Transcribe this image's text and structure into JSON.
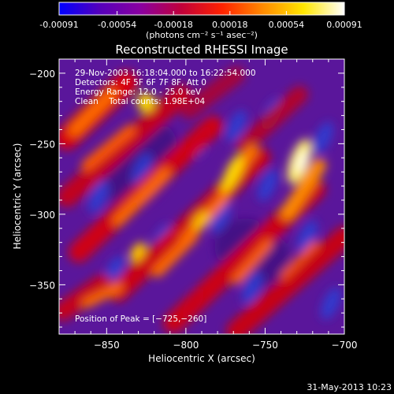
{
  "colorbar": {
    "tick_labels": [
      "-0.00091",
      "-0.00054",
      "-0.00018",
      "0.00018",
      "0.00054",
      "0.00091"
    ],
    "units_label": "(photons cm⁻² s⁻¹ asec⁻²)",
    "colors": [
      "#0000ff",
      "#5500bb",
      "#8a00a0",
      "#c0003a",
      "#ff2200",
      "#ff8a00",
      "#ffe600",
      "#ffffff"
    ]
  },
  "chart_data": {
    "type": "heatmap",
    "title": "Reconstructed RHESSI Image",
    "xlabel": "Heliocentric X (arcsec)",
    "ylabel": "Heliocentric Y (arcsec)",
    "xlim": [
      -880,
      -700
    ],
    "ylim": [
      -385,
      -190
    ],
    "x_ticks": [
      -850,
      -800,
      -750,
      -700
    ],
    "x_tick_labels": [
      "−850",
      "−800",
      "−750",
      "−700"
    ],
    "y_ticks": [
      -200,
      -250,
      -300,
      -350
    ],
    "y_tick_labels": [
      "−200",
      "−250",
      "−300",
      "−350"
    ],
    "value_range": [
      -0.00091,
      0.00091
    ],
    "peak": {
      "x": -725,
      "y": -260
    },
    "annotations": [
      "29-Nov-2003 16:18:04.000 to 16:22:54.000",
      "Detectors: 4F 5F 6F 7F 8F, Att 0",
      "Energy Range: 12.0 - 25.0 keV",
      "Clean    Total counts: 1.98E+04"
    ],
    "peak_label": "Position of Peak = [−725,−260]"
  },
  "footer": {
    "date": "31-May-2013 10:23"
  }
}
